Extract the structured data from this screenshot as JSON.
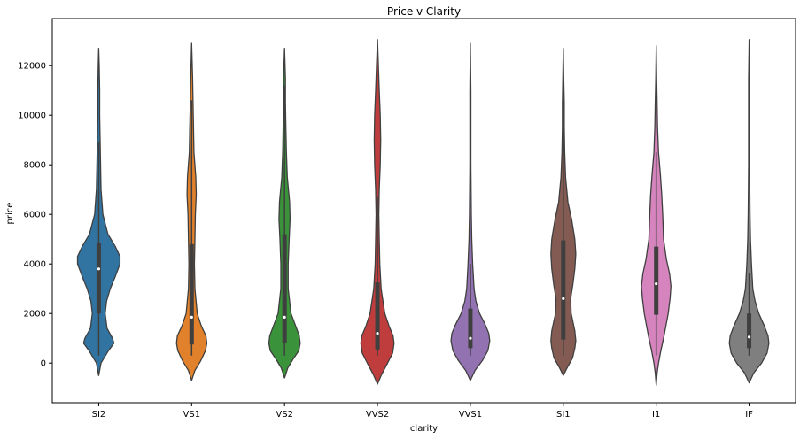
{
  "chart_data": {
    "type": "violin",
    "title": "Price v Clarity",
    "xlabel": "clarity",
    "ylabel": "price",
    "ylim": [
      -1600,
      13900
    ],
    "yticks": [
      0,
      2000,
      4000,
      6000,
      8000,
      10000,
      12000
    ],
    "grid": false,
    "categories": [
      "SI2",
      "VS1",
      "VS2",
      "VVS2",
      "VVS1",
      "SI1",
      "I1",
      "IF"
    ],
    "colors": [
      "#3274a1",
      "#e1812c",
      "#3a923a",
      "#c03d3e",
      "#9372b2",
      "#845b53",
      "#d684bd",
      "#7f7f7f"
    ],
    "violins": [
      {
        "category": "SI2",
        "min": -500,
        "max": 12700,
        "q1": 2000,
        "median": 3800,
        "q3": 4850,
        "whisker_low": 300,
        "whisker_high": 8900,
        "profile": [
          [
            -500,
            0
          ],
          [
            0,
            0.05
          ],
          [
            500,
            0.21
          ],
          [
            800,
            0.33
          ],
          [
            1000,
            0.3
          ],
          [
            1400,
            0.18
          ],
          [
            2000,
            0.14
          ],
          [
            2500,
            0.17
          ],
          [
            3000,
            0.25
          ],
          [
            3500,
            0.36
          ],
          [
            4000,
            0.46
          ],
          [
            4300,
            0.46
          ],
          [
            4700,
            0.36
          ],
          [
            5200,
            0.2
          ],
          [
            6000,
            0.09
          ],
          [
            7000,
            0.05
          ],
          [
            8000,
            0.04
          ],
          [
            9000,
            0.03
          ],
          [
            10000,
            0.02
          ],
          [
            11000,
            0.02
          ],
          [
            12000,
            0.01
          ],
          [
            12700,
            0
          ]
        ]
      },
      {
        "category": "VS1",
        "min": -700,
        "max": 12900,
        "q1": 750,
        "median": 1850,
        "q3": 4800,
        "whisker_low": 300,
        "whisker_high": 10600,
        "profile": [
          [
            -700,
            0
          ],
          [
            -300,
            0.07
          ],
          [
            100,
            0.2
          ],
          [
            500,
            0.3
          ],
          [
            800,
            0.33
          ],
          [
            1100,
            0.31
          ],
          [
            1500,
            0.21
          ],
          [
            2000,
            0.12
          ],
          [
            3000,
            0.07
          ],
          [
            4000,
            0.06
          ],
          [
            5000,
            0.07
          ],
          [
            6000,
            0.08
          ],
          [
            6800,
            0.1
          ],
          [
            7500,
            0.09
          ],
          [
            8500,
            0.05
          ],
          [
            9500,
            0.04
          ],
          [
            10500,
            0.03
          ],
          [
            11500,
            0.02
          ],
          [
            12900,
            0
          ]
        ]
      },
      {
        "category": "VS2",
        "min": -600,
        "max": 12700,
        "q1": 800,
        "median": 1850,
        "q3": 5200,
        "whisker_low": 300,
        "whisker_high": 11200,
        "profile": [
          [
            -600,
            0
          ],
          [
            -200,
            0.07
          ],
          [
            200,
            0.2
          ],
          [
            500,
            0.31
          ],
          [
            800,
            0.34
          ],
          [
            1100,
            0.32
          ],
          [
            1500,
            0.24
          ],
          [
            2000,
            0.14
          ],
          [
            3000,
            0.08
          ],
          [
            4000,
            0.08
          ],
          [
            5000,
            0.1
          ],
          [
            5800,
            0.12
          ],
          [
            6500,
            0.11
          ],
          [
            7500,
            0.06
          ],
          [
            8500,
            0.04
          ],
          [
            9500,
            0.03
          ],
          [
            10500,
            0.02
          ],
          [
            11500,
            0.02
          ],
          [
            12700,
            0
          ]
        ]
      },
      {
        "category": "VVS2",
        "min": -850,
        "max": 13050,
        "q1": 550,
        "median": 1200,
        "q3": 3250,
        "whisker_low": 300,
        "whisker_high": 6700,
        "profile": [
          [
            -850,
            0
          ],
          [
            -500,
            0.08
          ],
          [
            0,
            0.22
          ],
          [
            400,
            0.33
          ],
          [
            800,
            0.36
          ],
          [
            1100,
            0.34
          ],
          [
            1500,
            0.25
          ],
          [
            2000,
            0.16
          ],
          [
            3000,
            0.08
          ],
          [
            4000,
            0.05
          ],
          [
            5000,
            0.04
          ],
          [
            6000,
            0.03
          ],
          [
            7000,
            0.04
          ],
          [
            8000,
            0.06
          ],
          [
            9000,
            0.07
          ],
          [
            10000,
            0.06
          ],
          [
            11000,
            0.04
          ],
          [
            12000,
            0.02
          ],
          [
            13050,
            0
          ]
        ]
      },
      {
        "category": "VVS1",
        "min": -700,
        "max": 12900,
        "q1": 600,
        "median": 1000,
        "q3": 2200,
        "whisker_low": 300,
        "whisker_high": 4000,
        "profile": [
          [
            -700,
            0
          ],
          [
            -300,
            0.1
          ],
          [
            100,
            0.26
          ],
          [
            500,
            0.38
          ],
          [
            900,
            0.42
          ],
          [
            1200,
            0.4
          ],
          [
            1600,
            0.31
          ],
          [
            2000,
            0.2
          ],
          [
            2500,
            0.12
          ],
          [
            3000,
            0.08
          ],
          [
            4000,
            0.05
          ],
          [
            5000,
            0.03
          ],
          [
            6000,
            0.02
          ],
          [
            8000,
            0.01
          ],
          [
            10000,
            0.01
          ],
          [
            11000,
            0.01
          ],
          [
            12900,
            0
          ]
        ]
      },
      {
        "category": "SI1",
        "min": -500,
        "max": 12700,
        "q1": 950,
        "median": 2600,
        "q3": 4950,
        "whisker_low": 300,
        "whisker_high": 10600,
        "profile": [
          [
            -500,
            0
          ],
          [
            -200,
            0.08
          ],
          [
            200,
            0.2
          ],
          [
            600,
            0.25
          ],
          [
            900,
            0.27
          ],
          [
            1300,
            0.25
          ],
          [
            2000,
            0.17
          ],
          [
            2600,
            0.16
          ],
          [
            3200,
            0.21
          ],
          [
            3800,
            0.25
          ],
          [
            4400,
            0.27
          ],
          [
            5000,
            0.25
          ],
          [
            5800,
            0.18
          ],
          [
            6500,
            0.1
          ],
          [
            7500,
            0.05
          ],
          [
            8500,
            0.03
          ],
          [
            9500,
            0.02
          ],
          [
            10500,
            0.02
          ],
          [
            11500,
            0.01
          ],
          [
            12700,
            0
          ]
        ]
      },
      {
        "category": "I1",
        "min": -900,
        "max": 12800,
        "q1": 1950,
        "median": 3200,
        "q3": 4700,
        "whisker_low": 300,
        "whisker_high": 8500,
        "profile": [
          [
            -900,
            0
          ],
          [
            -400,
            0.02
          ],
          [
            0,
            0.05
          ],
          [
            500,
            0.1
          ],
          [
            1000,
            0.16
          ],
          [
            1500,
            0.21
          ],
          [
            2000,
            0.26
          ],
          [
            2600,
            0.3
          ],
          [
            3100,
            0.32
          ],
          [
            3600,
            0.29
          ],
          [
            4200,
            0.22
          ],
          [
            5000,
            0.16
          ],
          [
            6000,
            0.14
          ],
          [
            6800,
            0.12
          ],
          [
            7600,
            0.09
          ],
          [
            8500,
            0.05
          ],
          [
            9500,
            0.03
          ],
          [
            10500,
            0.02
          ],
          [
            11500,
            0.01
          ],
          [
            12800,
            0
          ]
        ]
      },
      {
        "category": "IF",
        "min": -800,
        "max": 13050,
        "q1": 600,
        "median": 1050,
        "q3": 2000,
        "whisker_low": 300,
        "whisker_high": 3650,
        "profile": [
          [
            -800,
            0
          ],
          [
            -400,
            0.1
          ],
          [
            0,
            0.27
          ],
          [
            400,
            0.39
          ],
          [
            800,
            0.43
          ],
          [
            1100,
            0.41
          ],
          [
            1500,
            0.33
          ],
          [
            2000,
            0.21
          ],
          [
            2500,
            0.13
          ],
          [
            3000,
            0.08
          ],
          [
            4000,
            0.05
          ],
          [
            5000,
            0.03
          ],
          [
            6000,
            0.02
          ],
          [
            8000,
            0.01
          ],
          [
            10000,
            0.01
          ],
          [
            11500,
            0.01
          ],
          [
            13050,
            0
          ]
        ]
      }
    ]
  }
}
